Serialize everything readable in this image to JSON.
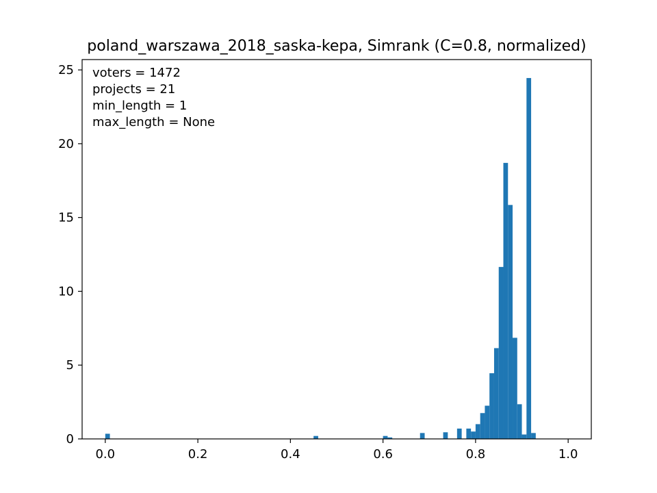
{
  "chart_data": {
    "type": "bar",
    "title": "poland_warszawa_2018_saska-kepa, Simrank (C=0.8, normalized)",
    "xlabel": "",
    "ylabel": "",
    "xlim": [
      -0.05,
      1.05
    ],
    "ylim": [
      0,
      25.7
    ],
    "grid": false,
    "bar_color": "#1f77b4",
    "xticks": [
      "0.0",
      "0.2",
      "0.4",
      "0.6",
      "0.8",
      "1.0"
    ],
    "yticks": [
      "0",
      "5",
      "10",
      "15",
      "20",
      "25"
    ],
    "annotations": [
      "voters = 1472",
      "projects = 21",
      "min_length = 1",
      "max_length = None"
    ],
    "bins": [
      {
        "x": 0.005,
        "value": 0.35
      },
      {
        "x": 0.455,
        "value": 0.2
      },
      {
        "x": 0.605,
        "value": 0.2
      },
      {
        "x": 0.615,
        "value": 0.1
      },
      {
        "x": 0.685,
        "value": 0.4
      },
      {
        "x": 0.735,
        "value": 0.45
      },
      {
        "x": 0.765,
        "value": 0.7
      },
      {
        "x": 0.785,
        "value": 0.7
      },
      {
        "x": 0.795,
        "value": 0.5
      },
      {
        "x": 0.805,
        "value": 1.0
      },
      {
        "x": 0.815,
        "value": 1.75
      },
      {
        "x": 0.825,
        "value": 2.25
      },
      {
        "x": 0.835,
        "value": 4.45
      },
      {
        "x": 0.845,
        "value": 6.15
      },
      {
        "x": 0.855,
        "value": 11.65
      },
      {
        "x": 0.865,
        "value": 18.7
      },
      {
        "x": 0.875,
        "value": 15.85
      },
      {
        "x": 0.885,
        "value": 6.85
      },
      {
        "x": 0.895,
        "value": 2.35
      },
      {
        "x": 0.905,
        "value": 0.3
      },
      {
        "x": 0.915,
        "value": 24.45
      },
      {
        "x": 0.925,
        "value": 0.4
      }
    ]
  }
}
